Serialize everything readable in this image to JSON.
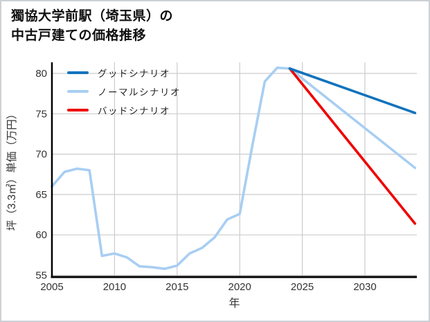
{
  "header": {
    "title_lines": [
      "獨協大学前駅（埼玉県）の",
      "中古戸建ての価格推移"
    ]
  },
  "chart_data": {
    "type": "line",
    "title": "獨協大学前駅（埼玉県）の中古戸建ての価格推移",
    "xlabel": "年",
    "ylabel": "坪（3.3㎡）単価（万円）",
    "xlim": [
      2005,
      2034.3
    ],
    "ylim": [
      54.8,
      81.4
    ],
    "x_ticks": [
      2005,
      2010,
      2015,
      2020,
      2025,
      2030
    ],
    "y_ticks": [
      55,
      60,
      65,
      70,
      75,
      80
    ],
    "grid": true,
    "legend_position": "top-left",
    "colors": {
      "good": "#1273bd",
      "normal": "#a8cef2",
      "bad": "#ee0000",
      "gridline": "#cccccc",
      "axis": "#000000",
      "tick_text": "#333333"
    },
    "series": [
      {
        "name": "グッドシナリオ",
        "color": "#1273bd",
        "x": [
          2024,
          2034
        ],
        "values": [
          80.6,
          75.1
        ]
      },
      {
        "name": "ノーマルシナリオ",
        "color": "#a8cef2",
        "x": [
          2005,
          2006,
          2007,
          2008,
          2009,
          2010,
          2011,
          2012,
          2013,
          2014,
          2015,
          2016,
          2017,
          2018,
          2019,
          2020,
          2021,
          2022,
          2023,
          2024,
          2034
        ],
        "values": [
          66.0,
          67.8,
          68.2,
          68.0,
          57.4,
          57.7,
          57.2,
          56.1,
          56.0,
          55.8,
          56.2,
          57.7,
          58.4,
          59.7,
          61.9,
          62.6,
          71.0,
          79.0,
          80.7,
          80.6,
          68.3
        ]
      },
      {
        "name": "バッドシナリオ",
        "color": "#ee0000",
        "x": [
          2024,
          2034
        ],
        "values": [
          80.6,
          61.4
        ]
      }
    ]
  }
}
